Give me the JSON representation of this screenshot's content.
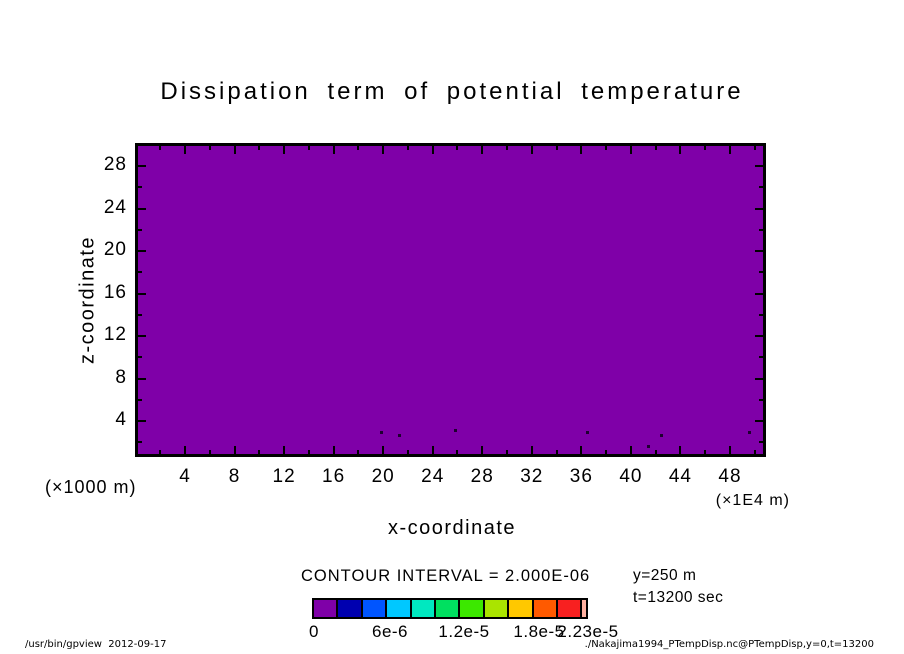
{
  "title": "Dissipation term of potential temperature",
  "x_axis": {
    "title": "x-coordinate",
    "unit": "(×1E4 m)",
    "major_ticks": [
      4,
      8,
      12,
      16,
      20,
      24,
      28,
      32,
      36,
      40,
      44,
      48
    ],
    "minor_tick_values": [
      2,
      4,
      6,
      8,
      10,
      12,
      14,
      16,
      18,
      20,
      22,
      24,
      26,
      28,
      30,
      32,
      34,
      36,
      38,
      40,
      42,
      44,
      46,
      48,
      50
    ]
  },
  "z_axis": {
    "title": "z-coordinate",
    "unit": "(×1000 m)",
    "major_ticks": [
      4,
      8,
      12,
      16,
      20,
      24,
      28
    ],
    "minor_tick_values": [
      2,
      4,
      6,
      8,
      10,
      12,
      14,
      16,
      18,
      20,
      22,
      24,
      26,
      28
    ]
  },
  "contour_label": "CONTOUR INTERVAL = 2.000E-06",
  "plot": {
    "fill_color": "#7f00a8",
    "speck_color": "#1e0030"
  },
  "colorbar": {
    "colors": [
      "#7f00a8",
      "#0000b0",
      "#0055ff",
      "#00c8ff",
      "#00e8c0",
      "#00e060",
      "#3ce800",
      "#aae400",
      "#ffc800",
      "#ff5a00",
      "#f82020",
      "#ffb0a0"
    ],
    "labels": [
      "0",
      "6e-6",
      "1.2e-5",
      "1.8e-5",
      "2.23e-5"
    ]
  },
  "annotations": {
    "y": "y=250 m",
    "t": "t=13200 sec"
  },
  "footer": {
    "left": "/usr/bin/gpview  2012-09-17",
    "right": "./Nakajima1994_PTempDisp.nc@PTempDisp,y=0,t=13200"
  },
  "chart_data": {
    "type": "heatmap",
    "title": "Dissipation term of potential temperature",
    "xlabel": "x-coordinate",
    "ylabel": "z-coordinate",
    "x_unit": "×1E4 m",
    "z_unit": "×1000 m",
    "x_range": [
      0,
      51
    ],
    "z_range": [
      0,
      30
    ],
    "x_major_ticks": [
      4,
      8,
      12,
      16,
      20,
      24,
      28,
      32,
      36,
      40,
      44,
      48
    ],
    "z_major_ticks": [
      4,
      8,
      12,
      16,
      20,
      24,
      28
    ],
    "contour_interval": 2e-06,
    "value_min": 0,
    "value_max": 2.23e-05,
    "tone_levels": [
      0,
      2e-06,
      4e-06,
      6e-06,
      8e-06,
      1e-05,
      1.2e-05,
      1.4e-05,
      1.6e-05,
      1.8e-05,
      2e-05,
      2.2e-05,
      2.23e-05
    ],
    "tone_colors": [
      "#7f00a8",
      "#0000b0",
      "#0055ff",
      "#00c8ff",
      "#00e8c0",
      "#00e060",
      "#3ce800",
      "#aae400",
      "#ffc800",
      "#ff5a00",
      "#f82020",
      "#ffb0a0"
    ],
    "colorbar_labels": [
      "0",
      "6e-6",
      "1.2e-5",
      "1.8e-5",
      "2.23e-5"
    ],
    "field_summary": "Field is nearly uniform: entire domain lies in the lowest tone level (0 to 2e-6), rendered solid purple, with a few tiny near-surface contour specks.",
    "specks_xz": [
      [
        19.9,
        2.9
      ],
      [
        21.3,
        2.6
      ],
      [
        25.8,
        3.1
      ],
      [
        36.5,
        2.9
      ],
      [
        41.4,
        1.6
      ],
      [
        42.5,
        2.6
      ],
      [
        49.6,
        2.9
      ]
    ],
    "slice": {
      "y": "250 m",
      "t": "13200 sec"
    },
    "legend_position": "bottom",
    "grid": false
  }
}
